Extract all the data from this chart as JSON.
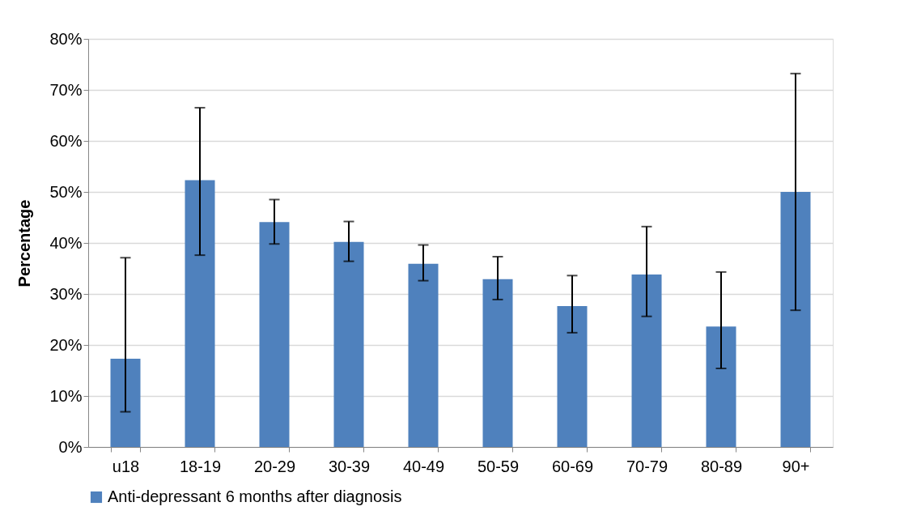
{
  "chart_data": {
    "type": "bar",
    "ylabel": "Percentage",
    "categories": [
      "u18",
      "18-19",
      "20-29",
      "30-39",
      "40-49",
      "50-59",
      "60-69",
      "70-79",
      "80-89",
      "90+"
    ],
    "series": [
      {
        "name": "Anti-depressant 6 months after diagnosis",
        "color": "#4f81bd",
        "values": [
          17.3,
          52.3,
          44.1,
          40.2,
          35.9,
          32.9,
          27.6,
          33.8,
          23.6,
          50.0
        ],
        "errors": [
          [
            6.9,
            37.1
          ],
          [
            37.6,
            66.5
          ],
          [
            39.8,
            48.5
          ],
          [
            36.4,
            44.2
          ],
          [
            32.6,
            39.6
          ],
          [
            28.9,
            37.3
          ],
          [
            22.4,
            33.6
          ],
          [
            25.6,
            43.2
          ],
          [
            15.4,
            34.3
          ],
          [
            26.8,
            73.2
          ]
        ]
      }
    ],
    "ylim": [
      0,
      80
    ],
    "yticks": [
      {
        "value": 0,
        "label": "0%"
      },
      {
        "value": 10,
        "label": "10%"
      },
      {
        "value": 20,
        "label": "20%"
      },
      {
        "value": 30,
        "label": "30%"
      },
      {
        "value": 40,
        "label": "40%"
      },
      {
        "value": 50,
        "label": "50%"
      },
      {
        "value": 60,
        "label": "60%"
      },
      {
        "value": 70,
        "label": "70%"
      },
      {
        "value": 80,
        "label": "80%"
      }
    ],
    "grid": "y",
    "legend": "bottom"
  }
}
